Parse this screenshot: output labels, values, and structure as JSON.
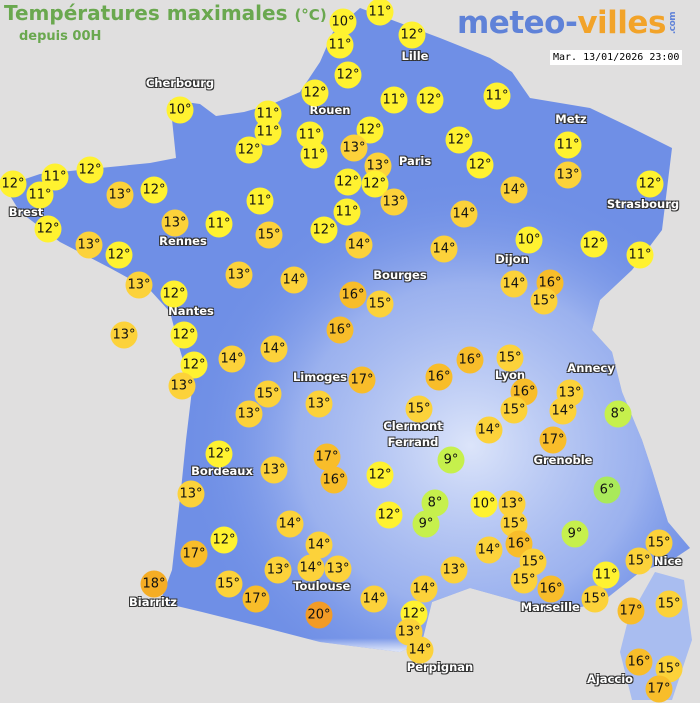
{
  "header": {
    "title": "Températures maximales",
    "unit": "(°C)",
    "subtitle": "depuis 00H"
  },
  "logo": {
    "part1": "meteo-",
    "part2": "villes",
    "part3": ".com"
  },
  "timestamp": "Mar. 13/01/2026 23:00",
  "colors": {
    "background": "#e0dfdf",
    "land": "#6f8fe6",
    "title": "#6aa84f",
    "cool": "#c6f04c",
    "mild": "#fff230",
    "warm": "#fcd23a",
    "warmer": "#f8bd2a",
    "hot": "#f29b26"
  },
  "cities": [
    "Cherbourg",
    "Lille",
    "Rouen",
    "Paris",
    "Metz",
    "Strasbourg",
    "Brest",
    "Rennes",
    "Dijon",
    "Bourges",
    "Nantes",
    "Limoges",
    "Annecy",
    "Clermont",
    "Ferrand",
    "Lyon",
    "Grenoble",
    "Bordeaux",
    "Nice",
    "Toulouse",
    "Marseille",
    "Biarritz",
    "Perpignan",
    "Ajaccio"
  ],
  "temperatures": [
    10,
    11,
    11,
    12,
    12,
    12,
    10,
    11,
    11,
    11,
    11,
    12,
    12,
    13,
    11,
    12,
    11,
    13,
    12,
    12,
    13,
    12,
    12,
    14,
    11,
    13,
    12,
    12,
    11,
    11,
    12,
    13,
    12,
    12,
    13,
    12,
    13,
    11,
    11,
    15,
    12,
    11,
    14,
    14,
    14,
    10,
    12,
    11,
    13,
    12,
    13,
    14,
    16,
    15,
    14,
    16,
    15,
    13,
    12,
    16,
    14,
    14,
    12,
    13,
    15,
    13,
    13,
    17,
    16,
    16,
    15,
    16,
    15,
    13,
    14,
    8,
    15,
    14,
    17,
    9,
    12,
    13,
    17,
    16,
    12,
    13,
    12,
    8,
    9,
    10,
    13,
    15,
    16,
    6,
    9,
    14,
    12,
    17,
    14,
    14,
    13,
    13,
    14,
    13,
    15,
    15,
    16,
    11,
    15,
    15,
    15,
    18,
    15,
    17,
    20,
    14,
    14,
    12,
    13,
    14,
    17,
    15,
    16,
    15,
    17
  ]
}
